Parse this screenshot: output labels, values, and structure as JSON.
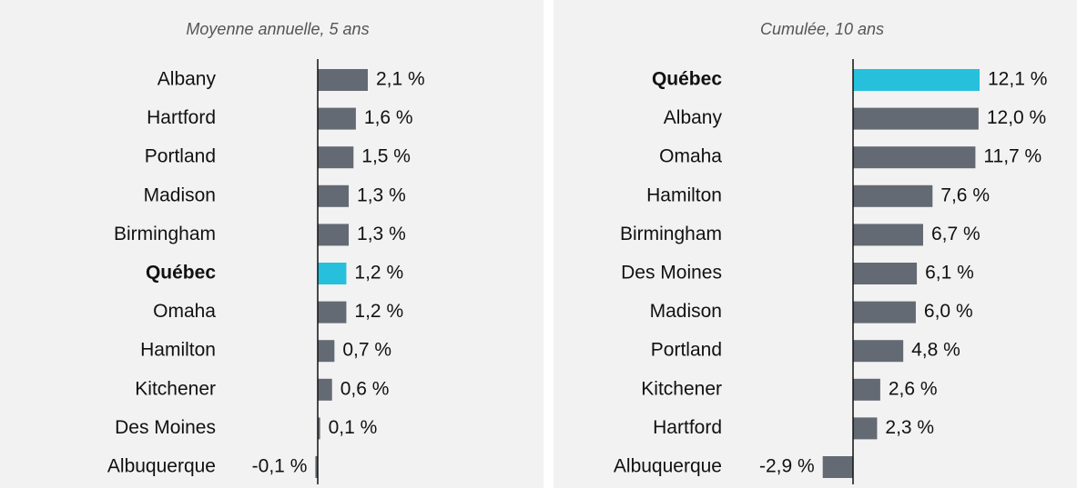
{
  "chart_data": [
    {
      "type": "bar",
      "orientation": "horizontal",
      "subtitle": "Moyenne annuelle, 5 ans",
      "categories": [
        "Albany",
        "Hartford",
        "Portland",
        "Madison",
        "Birmingham",
        "Québec",
        "Omaha",
        "Hamilton",
        "Kitchener",
        "Des Moines",
        "Albuquerque"
      ],
      "values": [
        2.1,
        1.6,
        1.5,
        1.3,
        1.3,
        1.2,
        1.2,
        0.7,
        0.6,
        0.1,
        -0.1
      ],
      "value_labels": [
        "2,1 %",
        "1,6 %",
        "1,5 %",
        "1,3 %",
        "1,3 %",
        "1,2 %",
        "1,2 %",
        "0,7 %",
        "0,6 %",
        "0,1 %",
        "-0,1 %"
      ],
      "color": "#646a73",
      "colors": [
        "#646a73",
        "#646a73",
        "#646a73",
        "#646a73",
        "#646a73",
        "#26c0dd",
        "#646a73",
        "#646a73",
        "#646a73",
        "#646a73",
        "#646a73"
      ]
    },
    {
      "type": "bar",
      "orientation": "horizontal",
      "subtitle": "Cumulée, 10 ans",
      "categories": [
        "Québec",
        "Albany",
        "Omaha",
        "Hamilton",
        "Birmingham",
        "Des Moines",
        "Madison",
        "Portland",
        "Kitchener",
        "Hartford",
        "Albuquerque"
      ],
      "values": [
        12.1,
        12.0,
        11.7,
        7.6,
        6.7,
        6.1,
        6.0,
        4.8,
        2.6,
        2.3,
        -2.9
      ],
      "value_labels": [
        "12,1 %",
        "12,0 %",
        "11,7 %",
        "7,6 %",
        "6,7 %",
        "6,1 %",
        "6,0 %",
        "4,8 %",
        "2,6 %",
        "2,3 %",
        "-2,9 %"
      ],
      "color": "#646a73",
      "colors": [
        "#26c0dd",
        "#646a73",
        "#646a73",
        "#646a73",
        "#646a73",
        "#646a73",
        "#646a73",
        "#646a73",
        "#646a73",
        "#646a73",
        "#646a73"
      ]
    }
  ]
}
